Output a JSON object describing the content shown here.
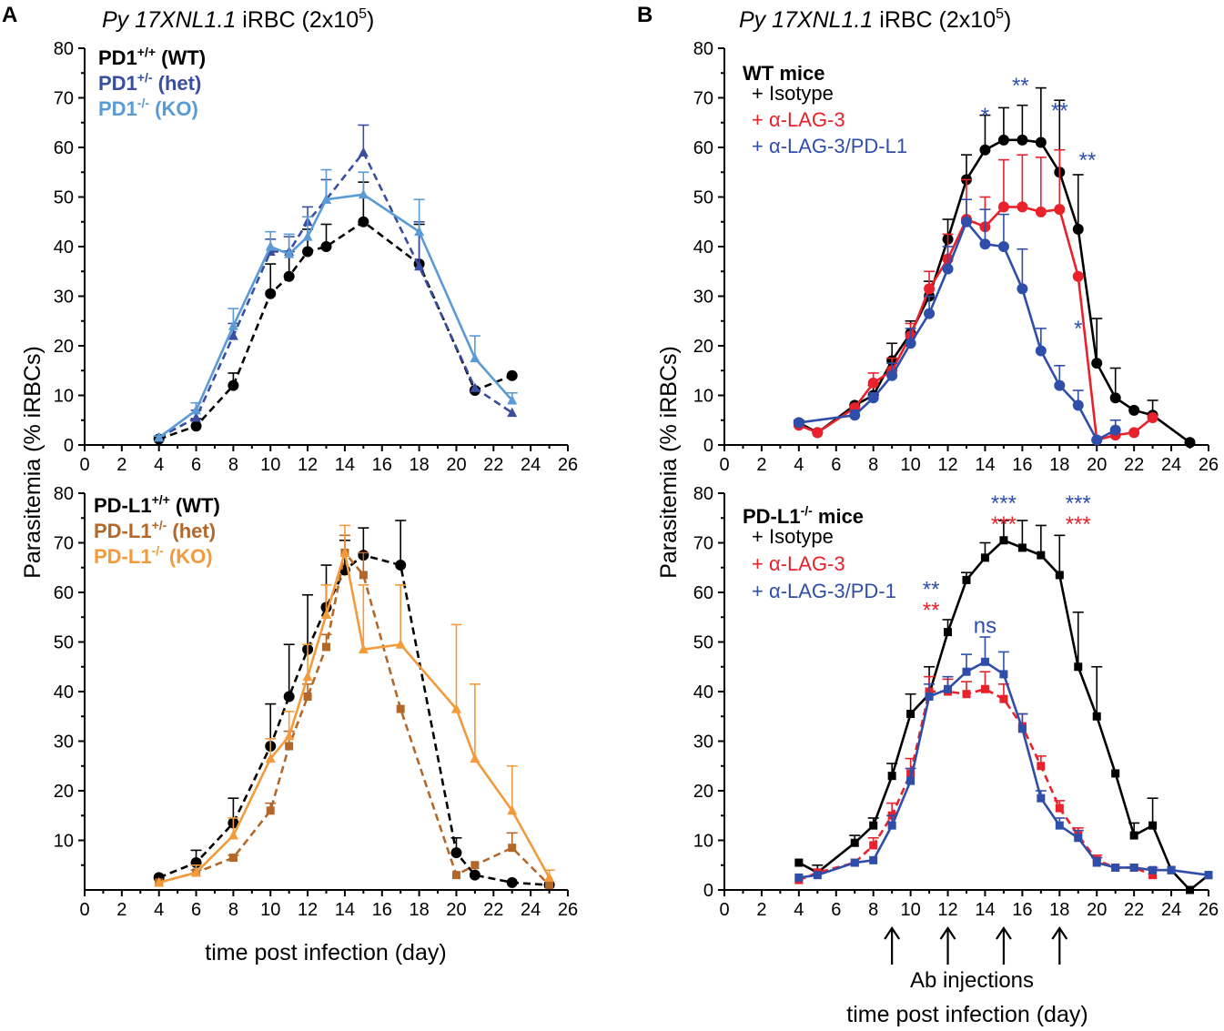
{
  "figure": {
    "panel_a_letter": "A",
    "panel_b_letter": "B",
    "titles": {
      "a": {
        "italic": "Py 17XNL1.1",
        "rest": " iRBC (2x10",
        "sup": "5",
        "end": ")"
      },
      "b": {
        "italic": "Py 17XNL1.1",
        "rest": " iRBC (2x10",
        "sup": "5",
        "end": ")"
      }
    },
    "ylabel_a": "Parasitemia (% iRBCs)",
    "ylabel_b": "Parasitemia (% iRBCs)",
    "xlabel_a": "time post infection (day)",
    "xlabel_b": "time post infection (day)",
    "ab_injections_label": "Ab injections",
    "ab_injection_days": [
      9,
      12,
      15,
      18
    ]
  },
  "colors": {
    "black": "#000000",
    "het_blue": "#3a4ea1",
    "ko_blue": "#5b9bd5",
    "het_brown": "#b3682a",
    "ko_orange": "#f39a3b",
    "red": "#e8212b",
    "blue": "#2f4eaa"
  },
  "chart_data": [
    {
      "id": "A_top",
      "type": "line",
      "xlim": [
        0,
        26
      ],
      "ylim": [
        0,
        80
      ],
      "xticks": [
        0,
        2,
        4,
        6,
        8,
        10,
        12,
        14,
        16,
        18,
        20,
        22,
        24,
        26
      ],
      "yticks": [
        0,
        10,
        20,
        30,
        40,
        50,
        60,
        70,
        80
      ],
      "legend": [
        {
          "label": "PD1",
          "sup": "+/+",
          "suffix": " (WT)",
          "color": "#000000"
        },
        {
          "label": "PD1",
          "sup": "+/-",
          "suffix": " (het)",
          "color": "#3a4ea1"
        },
        {
          "label": "PD1",
          "sup": "-/-",
          "suffix": " (KO)",
          "color": "#5b9bd5"
        }
      ],
      "series": [
        {
          "name": "PD1+/+ (WT)",
          "color": "#000000",
          "dash": true,
          "marker": "circle",
          "x": [
            4,
            6,
            8,
            10,
            11,
            12,
            13,
            15,
            18,
            21,
            23
          ],
          "y": [
            1.2,
            3.8,
            12,
            30.5,
            34,
            39,
            40,
            45,
            36.5,
            11,
            14
          ],
          "err": [
            0.5,
            1.5,
            2.5,
            6,
            5,
            4.5,
            4.5,
            8,
            8,
            0,
            0
          ]
        },
        {
          "name": "PD1+/- (het)",
          "color": "#3a4ea1",
          "dash": true,
          "marker": "triangle",
          "x": [
            4,
            6,
            8,
            10,
            11,
            12,
            13,
            15,
            18,
            21,
            23
          ],
          "y": [
            1.5,
            5.5,
            22,
            39,
            39,
            45,
            49.5,
            59,
            36,
            11.5,
            6.5
          ],
          "err": [
            0.3,
            1.5,
            2.5,
            2.5,
            3,
            3,
            4,
            5.5,
            9,
            0,
            0
          ]
        },
        {
          "name": "PD1-/- (KO)",
          "color": "#5b9bd5",
          "dash": false,
          "marker": "triangle",
          "x": [
            4,
            6,
            8,
            10,
            11,
            12,
            13,
            15,
            18,
            21,
            23
          ],
          "y": [
            1.5,
            7,
            24,
            40,
            38.5,
            42,
            49.5,
            50.5,
            43,
            17.5,
            9
          ],
          "err": [
            0.3,
            1.5,
            3.5,
            3,
            4,
            4,
            6,
            4.5,
            6.5,
            4.5,
            1.5
          ]
        }
      ]
    },
    {
      "id": "A_bottom",
      "type": "line",
      "xlim": [
        0,
        26
      ],
      "ylim": [
        0,
        80
      ],
      "xticks": [
        0,
        2,
        4,
        6,
        8,
        10,
        12,
        14,
        16,
        18,
        20,
        22,
        24,
        26
      ],
      "yticks": [
        10,
        20,
        30,
        40,
        50,
        60,
        70,
        80
      ],
      "legend": [
        {
          "label": "PD-L1",
          "sup": "+/+",
          "suffix": " (WT)",
          "color": "#000000"
        },
        {
          "label": "PD-L1",
          "sup": "+/-",
          "suffix": " (het)",
          "color": "#b3682a"
        },
        {
          "label": "PD-L1",
          "sup": "-/-",
          "suffix": " (KO)",
          "color": "#f39a3b"
        }
      ],
      "series": [
        {
          "name": "PD-L1+/+ (WT)",
          "color": "#000000",
          "dash": true,
          "marker": "circle",
          "x": [
            4,
            6,
            8,
            10,
            11,
            12,
            13,
            14,
            15,
            17,
            20,
            21,
            23,
            25
          ],
          "y": [
            2.5,
            5.5,
            13.5,
            29,
            39,
            48.5,
            57,
            64.5,
            67.5,
            65.5,
            7.5,
            3,
            1.5,
            1
          ],
          "err": [
            0,
            2.5,
            5,
            8.5,
            10.5,
            11,
            8.5,
            6,
            5.5,
            9,
            3,
            0,
            0,
            0
          ]
        },
        {
          "name": "PD-L1+/- (het)",
          "color": "#b3682a",
          "dash": true,
          "marker": "square",
          "x": [
            4,
            6,
            8,
            10,
            11,
            12,
            13,
            14,
            15,
            17,
            20,
            21,
            23,
            25
          ],
          "y": [
            1.5,
            3.5,
            6.5,
            16,
            29,
            39,
            49,
            68,
            63.5,
            36.5,
            3,
            5,
            8.5,
            1
          ],
          "err": [
            0,
            0.5,
            0.5,
            1.5,
            3,
            2.5,
            2.5,
            3.5,
            4.5,
            0,
            0,
            0,
            3,
            0
          ]
        },
        {
          "name": "PD-L1-/- (KO)",
          "color": "#f39a3b",
          "dash": false,
          "marker": "triangle",
          "x": [
            4,
            6,
            8,
            10,
            11,
            12,
            13,
            14,
            15,
            17,
            20,
            21,
            23,
            25
          ],
          "y": [
            1.5,
            3.5,
            11,
            26.5,
            31,
            43,
            55.5,
            68,
            48.5,
            49.5,
            36.5,
            26.5,
            16,
            2.5
          ],
          "err": [
            0,
            1.5,
            3.5,
            4,
            5,
            6.5,
            6,
            5.5,
            13,
            12,
            17,
            15,
            9,
            1.5
          ]
        }
      ]
    },
    {
      "id": "B_top",
      "type": "line",
      "xlim": [
        0,
        26
      ],
      "ylim": [
        0,
        80
      ],
      "xticks": [
        0,
        2,
        4,
        6,
        8,
        10,
        12,
        14,
        16,
        18,
        20,
        22,
        24,
        26
      ],
      "yticks": [
        0,
        10,
        20,
        30,
        40,
        50,
        60,
        70,
        80
      ],
      "title": "WT mice",
      "legend": [
        {
          "label": "Isotype",
          "color": "#000000"
        },
        {
          "label": "α-LAG-3",
          "color": "#e8212b"
        },
        {
          "label": "α-LAG-3/PD-L1",
          "color": "#2f4eaa"
        }
      ],
      "series": [
        {
          "name": "Isotype",
          "color": "#000000",
          "dash": false,
          "marker": "circle",
          "x": [
            4,
            5,
            7,
            8,
            9,
            10,
            11,
            12,
            13,
            14,
            15,
            16,
            17,
            18,
            19,
            20,
            21,
            22,
            23,
            25
          ],
          "y": [
            4.5,
            2.5,
            8,
            10,
            17,
            22.5,
            30,
            41.5,
            53.5,
            59.5,
            61.5,
            61.5,
            61,
            55,
            43.5,
            16.5,
            9.5,
            7,
            6,
            0.5
          ],
          "err": [
            0,
            0,
            0,
            2,
            3.5,
            2.5,
            3,
            4,
            5,
            7,
            6.5,
            7,
            11,
            14.5,
            11,
            9,
            6,
            0,
            3,
            0
          ]
        },
        {
          "name": "α-LAG-3",
          "color": "#e8212b",
          "dash": false,
          "marker": "circle",
          "x": [
            4,
            5,
            7,
            8,
            9,
            10,
            11,
            12,
            13,
            14,
            15,
            16,
            17,
            18,
            19,
            20,
            21,
            22,
            23
          ],
          "y": [
            4,
            2.5,
            7.5,
            12.5,
            15,
            22,
            31.5,
            37.5,
            45.5,
            44,
            48,
            48,
            47,
            47.5,
            34,
            1,
            2,
            2.5,
            5.5
          ],
          "err": [
            0,
            0,
            0,
            2,
            2.5,
            2.5,
            3.5,
            5,
            8,
            6,
            9.5,
            10.5,
            11,
            12,
            0,
            0,
            0,
            0,
            0
          ]
        },
        {
          "name": "α-LAG-3/PD-L1",
          "color": "#2f4eaa",
          "dash": false,
          "marker": "circle",
          "x": [
            4,
            7,
            8,
            9,
            10,
            11,
            12,
            13,
            14,
            15,
            16,
            17,
            18,
            19,
            20,
            21
          ],
          "y": [
            4.5,
            6,
            9.5,
            14,
            20.5,
            26.5,
            35.5,
            45,
            40.5,
            40,
            31.5,
            19,
            12,
            8,
            1,
            3
          ],
          "err": [
            0.5,
            1,
            1,
            2.5,
            3,
            3.5,
            4.5,
            4.5,
            7,
            6.5,
            8,
            4.5,
            4,
            3,
            0,
            2
          ]
        }
      ],
      "annotations": [
        {
          "text": "*",
          "x": 14,
          "y": 65,
          "color": "#2f4eaa"
        },
        {
          "text": "**",
          "x": 15.9,
          "y": 71,
          "color": "#2f4eaa"
        },
        {
          "text": "**",
          "x": 18,
          "y": 66,
          "color": "#2f4eaa"
        },
        {
          "text": "**",
          "x": 19.5,
          "y": 56,
          "color": "#2f4eaa"
        },
        {
          "text": "*",
          "x": 19,
          "y": 22,
          "color": "#2f4eaa"
        }
      ]
    },
    {
      "id": "B_bottom",
      "type": "line",
      "xlim": [
        0,
        26
      ],
      "ylim": [
        0,
        80
      ],
      "xticks": [
        0,
        2,
        4,
        6,
        8,
        10,
        12,
        14,
        16,
        18,
        20,
        22,
        24,
        26
      ],
      "yticks": [
        0,
        10,
        20,
        30,
        40,
        50,
        60,
        70,
        80
      ],
      "title": "PD-L1",
      "title_sup": "-/-",
      "title_suffix": " mice",
      "legend": [
        {
          "label": "Isotype",
          "color": "#000000"
        },
        {
          "label": "α-LAG-3",
          "color": "#e8212b"
        },
        {
          "label": "α-LAG-3/PD-1",
          "color": "#2f4eaa"
        }
      ],
      "series": [
        {
          "name": "Isotype",
          "color": "#000000",
          "dash": false,
          "marker": "square",
          "x": [
            4,
            5,
            7,
            8,
            9,
            10,
            11,
            12,
            13,
            14,
            15,
            16,
            17,
            18,
            19,
            20,
            21,
            22,
            23,
            24,
            25,
            26
          ],
          "y": [
            5.5,
            3.5,
            9.5,
            13,
            23,
            35.5,
            39.5,
            52,
            62.5,
            67,
            70.5,
            69,
            67.5,
            63.5,
            45,
            35,
            23.5,
            11,
            13,
            4,
            0,
            3
          ],
          "err": [
            0,
            1.5,
            1.5,
            1.5,
            2.5,
            4,
            5.5,
            2.5,
            1.5,
            3,
            4,
            5.5,
            6,
            8,
            11,
            10,
            0,
            2.5,
            5.5,
            0,
            0,
            0
          ]
        },
        {
          "name": "α-LAG-3",
          "color": "#e8212b",
          "dash": true,
          "marker": "square",
          "x": [
            4,
            5,
            7,
            8,
            9,
            10,
            11,
            12,
            13,
            14,
            15,
            16,
            17,
            18,
            19,
            20,
            21,
            22,
            23
          ],
          "y": [
            2,
            3.5,
            5.5,
            9,
            15,
            23.5,
            40,
            40,
            39.5,
            40.5,
            38.5,
            33,
            25,
            16.5,
            11,
            6,
            4.5,
            4.5,
            3
          ],
          "err": [
            0,
            0,
            0,
            1.5,
            2.5,
            3,
            3,
            2.5,
            2.5,
            3.5,
            3,
            2.5,
            2,
            1.5,
            1.5,
            1,
            0,
            0,
            1.5
          ]
        },
        {
          "name": "α-LAG-3/PD-1",
          "color": "#2f4eaa",
          "dash": false,
          "marker": "square",
          "x": [
            4,
            5,
            7,
            8,
            9,
            10,
            11,
            12,
            13,
            14,
            15,
            16,
            17,
            18,
            19,
            20,
            21,
            22,
            23,
            24,
            26
          ],
          "y": [
            2.5,
            3,
            5.5,
            6,
            13,
            22,
            39,
            40.5,
            44,
            46,
            43.5,
            32.5,
            18.5,
            13,
            10.5,
            5.5,
            4.5,
            4.5,
            4,
            4,
            3
          ],
          "err": [
            0,
            0,
            0,
            0,
            2,
            2.5,
            2.5,
            2.5,
            3.5,
            5,
            4.5,
            3,
            1.5,
            1.5,
            1.5,
            1,
            0,
            0,
            0,
            0,
            0
          ]
        }
      ],
      "annotations": [
        {
          "text": "***",
          "x": 15,
          "y": 76.5,
          "color": "#2f4eaa"
        },
        {
          "text": "***",
          "x": 15,
          "y": 72.3,
          "color": "#e8212b"
        },
        {
          "text": "***",
          "x": 19,
          "y": 76.5,
          "color": "#2f4eaa"
        },
        {
          "text": "***",
          "x": 19,
          "y": 72.3,
          "color": "#e8212b"
        },
        {
          "text": "**",
          "x": 11.1,
          "y": 59.2,
          "color": "#2f4eaa"
        },
        {
          "text": "**",
          "x": 11.1,
          "y": 55,
          "color": "#e8212b"
        },
        {
          "text": "ns",
          "x": 14,
          "y": 51.8,
          "color": "#2f4eaa"
        }
      ]
    }
  ]
}
